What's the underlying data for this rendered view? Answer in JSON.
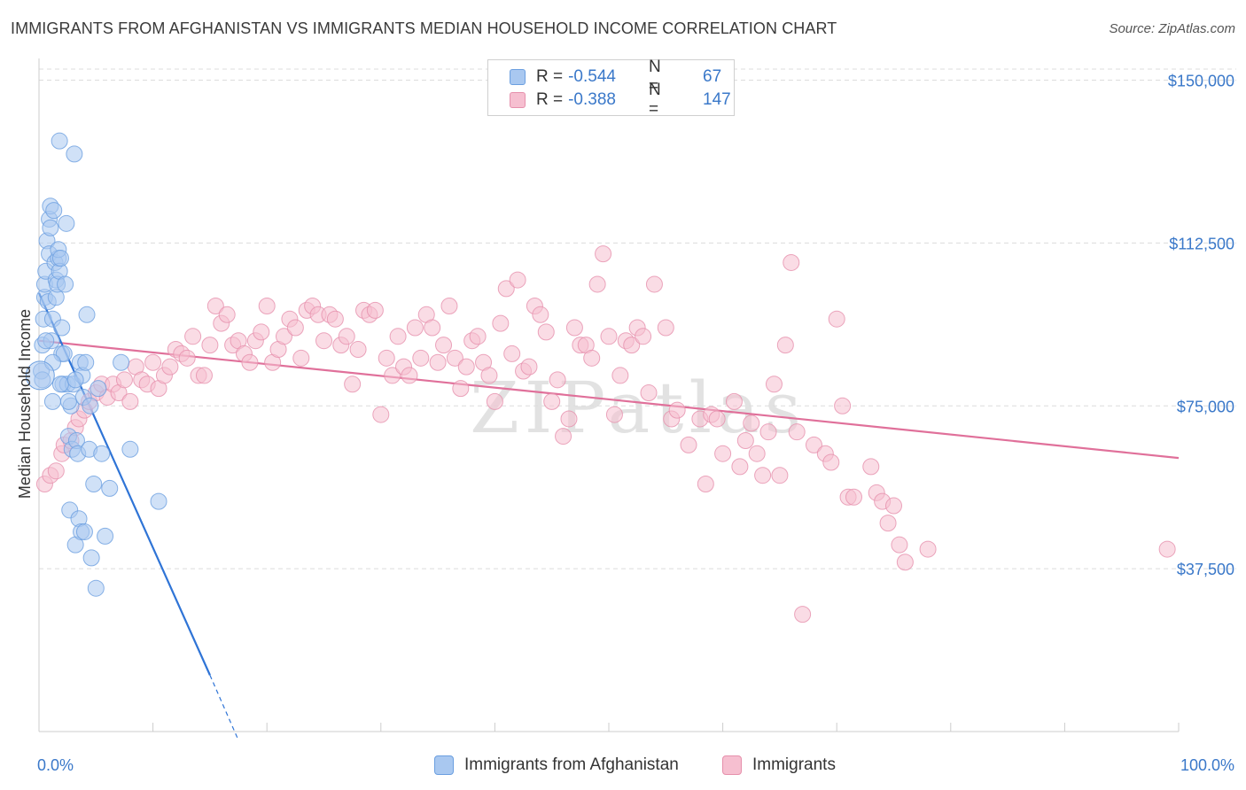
{
  "title": "IMMIGRANTS FROM AFGHANISTAN VS IMMIGRANTS MEDIAN HOUSEHOLD INCOME CORRELATION CHART",
  "source": "Source: ZipAtlas.com",
  "watermark": "ZIPatlas",
  "legend": {
    "rows": [
      {
        "r_label": "R =",
        "r_value": "-0.544",
        "n_label": "N =",
        "n_value": "67",
        "color": "#a9c8f0",
        "border": "#6b9fe0"
      },
      {
        "r_label": "R =",
        "r_value": "-0.388",
        "n_label": "N =",
        "n_value": "147",
        "color": "#f6bfd0",
        "border": "#e690ac"
      }
    ]
  },
  "bottom_legend": [
    {
      "label": "Immigrants from Afghanistan",
      "color": "#a9c8f0",
      "border": "#6b9fe0"
    },
    {
      "label": "Immigrants",
      "color": "#f6bfd0",
      "border": "#e690ac"
    }
  ],
  "chart_data": {
    "type": "scatter",
    "xlabel": "",
    "ylabel": "Median Household Income",
    "xlim": [
      0,
      100
    ],
    "ylim": [
      0,
      155000
    ],
    "x_tick_labels": [
      "0.0%",
      "100.0%"
    ],
    "y_ticks": [
      37500,
      75000,
      112500,
      150000
    ],
    "y_tick_labels": [
      "$37,500",
      "$75,000",
      "$112,500",
      "$150,000"
    ],
    "grid": true,
    "series": [
      {
        "name": "Immigrants from Afghanistan",
        "color": "#6b9fe0",
        "fill": "#a9c8f0",
        "points": [
          [
            0.2,
            83000
          ],
          [
            0.3,
            81000
          ],
          [
            0.3,
            89000
          ],
          [
            0.4,
            95000
          ],
          [
            0.5,
            100000
          ],
          [
            0.5,
            103000
          ],
          [
            0.6,
            106000
          ],
          [
            0.7,
            113000
          ],
          [
            0.8,
            99000
          ],
          [
            0.9,
            110000
          ],
          [
            0.9,
            118000
          ],
          [
            1.0,
            121000
          ],
          [
            1.0,
            116000
          ],
          [
            1.1,
            90000
          ],
          [
            1.2,
            76000
          ],
          [
            1.2,
            95000
          ],
          [
            1.3,
            120000
          ],
          [
            1.4,
            108000
          ],
          [
            1.5,
            100000
          ],
          [
            1.5,
            104000
          ],
          [
            1.6,
            103000
          ],
          [
            1.7,
            109000
          ],
          [
            1.7,
            111000
          ],
          [
            1.8,
            106000
          ],
          [
            1.9,
            109000
          ],
          [
            2.0,
            87000
          ],
          [
            2.0,
            93000
          ],
          [
            2.1,
            80000
          ],
          [
            2.2,
            87000
          ],
          [
            2.3,
            103000
          ],
          [
            2.4,
            117000
          ],
          [
            2.5,
            80000
          ],
          [
            2.6,
            68000
          ],
          [
            2.7,
            51000
          ],
          [
            2.8,
            75000
          ],
          [
            2.9,
            65000
          ],
          [
            3.0,
            80000
          ],
          [
            3.1,
            133000
          ],
          [
            3.2,
            43000
          ],
          [
            3.3,
            67000
          ],
          [
            3.4,
            64000
          ],
          [
            3.5,
            49000
          ],
          [
            3.6,
            85000
          ],
          [
            3.7,
            46000
          ],
          [
            3.8,
            82000
          ],
          [
            3.9,
            77000
          ],
          [
            4.0,
            46000
          ],
          [
            4.1,
            85000
          ],
          [
            4.2,
            96000
          ],
          [
            4.4,
            65000
          ],
          [
            4.5,
            75000
          ],
          [
            4.6,
            40000
          ],
          [
            4.8,
            57000
          ],
          [
            5.0,
            33000
          ],
          [
            5.2,
            79000
          ],
          [
            5.5,
            64000
          ],
          [
            5.8,
            45000
          ],
          [
            1.8,
            136000
          ],
          [
            1.2,
            85000
          ],
          [
            0.6,
            90000
          ],
          [
            2.6,
            76000
          ],
          [
            1.9,
            80000
          ],
          [
            3.2,
            81000
          ],
          [
            6.2,
            56000
          ],
          [
            7.2,
            85000
          ],
          [
            8.0,
            65000
          ],
          [
            10.5,
            53000
          ]
        ],
        "trend": {
          "x0": 0,
          "y0": 101000,
          "x1": 15,
          "y1": 13000,
          "dash_x1": 17.5,
          "dash_y1": -2000
        }
      },
      {
        "name": "Immigrants",
        "color": "#e690ac",
        "fill": "#f6bfd0",
        "points": [
          [
            0.5,
            57000
          ],
          [
            1.0,
            59000
          ],
          [
            1.5,
            60000
          ],
          [
            2.0,
            64000
          ],
          [
            2.2,
            66000
          ],
          [
            2.8,
            67000
          ],
          [
            3.2,
            70000
          ],
          [
            3.5,
            72000
          ],
          [
            4.0,
            74000
          ],
          [
            4.4,
            76000
          ],
          [
            5.0,
            78000
          ],
          [
            5.5,
            80000
          ],
          [
            6.0,
            77000
          ],
          [
            6.5,
            80000
          ],
          [
            7.0,
            78000
          ],
          [
            7.5,
            81000
          ],
          [
            8.0,
            76000
          ],
          [
            8.5,
            84000
          ],
          [
            9.0,
            81000
          ],
          [
            9.5,
            80000
          ],
          [
            10.0,
            85000
          ],
          [
            10.5,
            79000
          ],
          [
            11.0,
            82000
          ],
          [
            11.5,
            84000
          ],
          [
            12.0,
            88000
          ],
          [
            12.5,
            87000
          ],
          [
            13.0,
            86000
          ],
          [
            13.5,
            91000
          ],
          [
            14.0,
            82000
          ],
          [
            14.5,
            82000
          ],
          [
            15.0,
            89000
          ],
          [
            15.5,
            98000
          ],
          [
            16.0,
            94000
          ],
          [
            16.5,
            96000
          ],
          [
            17.0,
            89000
          ],
          [
            17.5,
            90000
          ],
          [
            18.0,
            87000
          ],
          [
            18.5,
            85000
          ],
          [
            19.0,
            90000
          ],
          [
            19.5,
            92000
          ],
          [
            20.0,
            98000
          ],
          [
            20.5,
            85000
          ],
          [
            21.0,
            88000
          ],
          [
            21.5,
            91000
          ],
          [
            22.0,
            95000
          ],
          [
            22.5,
            93000
          ],
          [
            23.0,
            86000
          ],
          [
            23.5,
            97000
          ],
          [
            24.0,
            98000
          ],
          [
            24.5,
            96000
          ],
          [
            25.0,
            90000
          ],
          [
            25.5,
            96000
          ],
          [
            26.0,
            95000
          ],
          [
            26.5,
            89000
          ],
          [
            27.0,
            91000
          ],
          [
            27.5,
            80000
          ],
          [
            28.0,
            88000
          ],
          [
            28.5,
            97000
          ],
          [
            29.0,
            96000
          ],
          [
            29.5,
            97000
          ],
          [
            30.0,
            73000
          ],
          [
            30.5,
            86000
          ],
          [
            31.0,
            82000
          ],
          [
            31.5,
            91000
          ],
          [
            32.0,
            84000
          ],
          [
            32.5,
            82000
          ],
          [
            33.0,
            93000
          ],
          [
            33.5,
            86000
          ],
          [
            34.0,
            96000
          ],
          [
            34.5,
            93000
          ],
          [
            35.0,
            85000
          ],
          [
            35.5,
            89000
          ],
          [
            36.0,
            98000
          ],
          [
            36.5,
            86000
          ],
          [
            37.0,
            79000
          ],
          [
            37.5,
            84000
          ],
          [
            38.0,
            90000
          ],
          [
            38.5,
            91000
          ],
          [
            39.0,
            85000
          ],
          [
            39.5,
            82000
          ],
          [
            40.0,
            76000
          ],
          [
            40.5,
            94000
          ],
          [
            41.0,
            102000
          ],
          [
            41.5,
            87000
          ],
          [
            42.0,
            104000
          ],
          [
            42.5,
            83000
          ],
          [
            43.0,
            84000
          ],
          [
            43.5,
            98000
          ],
          [
            44.0,
            96000
          ],
          [
            44.5,
            92000
          ],
          [
            45.0,
            76000
          ],
          [
            45.5,
            81000
          ],
          [
            46.0,
            68000
          ],
          [
            46.5,
            72000
          ],
          [
            47.0,
            93000
          ],
          [
            47.5,
            89000
          ],
          [
            48.0,
            89000
          ],
          [
            48.5,
            86000
          ],
          [
            49.0,
            103000
          ],
          [
            49.5,
            110000
          ],
          [
            50.0,
            91000
          ],
          [
            50.5,
            73000
          ],
          [
            51.0,
            82000
          ],
          [
            51.5,
            90000
          ],
          [
            52.0,
            89000
          ],
          [
            52.5,
            93000
          ],
          [
            53.0,
            91000
          ],
          [
            53.5,
            78000
          ],
          [
            54.0,
            103000
          ],
          [
            55.0,
            93000
          ],
          [
            55.5,
            72000
          ],
          [
            56.0,
            74000
          ],
          [
            57.0,
            66000
          ],
          [
            58.0,
            72000
          ],
          [
            58.5,
            57000
          ],
          [
            59.0,
            73000
          ],
          [
            59.5,
            72000
          ],
          [
            60.0,
            64000
          ],
          [
            61.0,
            76000
          ],
          [
            61.5,
            61000
          ],
          [
            62.0,
            67000
          ],
          [
            62.5,
            71000
          ],
          [
            63.0,
            64000
          ],
          [
            63.5,
            59000
          ],
          [
            64.0,
            69000
          ],
          [
            64.5,
            80000
          ],
          [
            65.0,
            59000
          ],
          [
            65.5,
            89000
          ],
          [
            66.0,
            108000
          ],
          [
            66.5,
            69000
          ],
          [
            67.0,
            27000
          ],
          [
            68.0,
            66000
          ],
          [
            69.0,
            64000
          ],
          [
            69.5,
            62000
          ],
          [
            70.0,
            95000
          ],
          [
            70.5,
            75000
          ],
          [
            71.0,
            54000
          ],
          [
            71.5,
            54000
          ],
          [
            73.0,
            61000
          ],
          [
            73.5,
            55000
          ],
          [
            74.0,
            53000
          ],
          [
            74.5,
            48000
          ],
          [
            75.0,
            52000
          ],
          [
            75.5,
            43000
          ],
          [
            76.0,
            39000
          ],
          [
            78.0,
            42000
          ],
          [
            99.0,
            42000
          ]
        ],
        "trend": {
          "x0": 0,
          "y0": 90000,
          "x1": 100,
          "y1": 63000
        }
      }
    ]
  }
}
